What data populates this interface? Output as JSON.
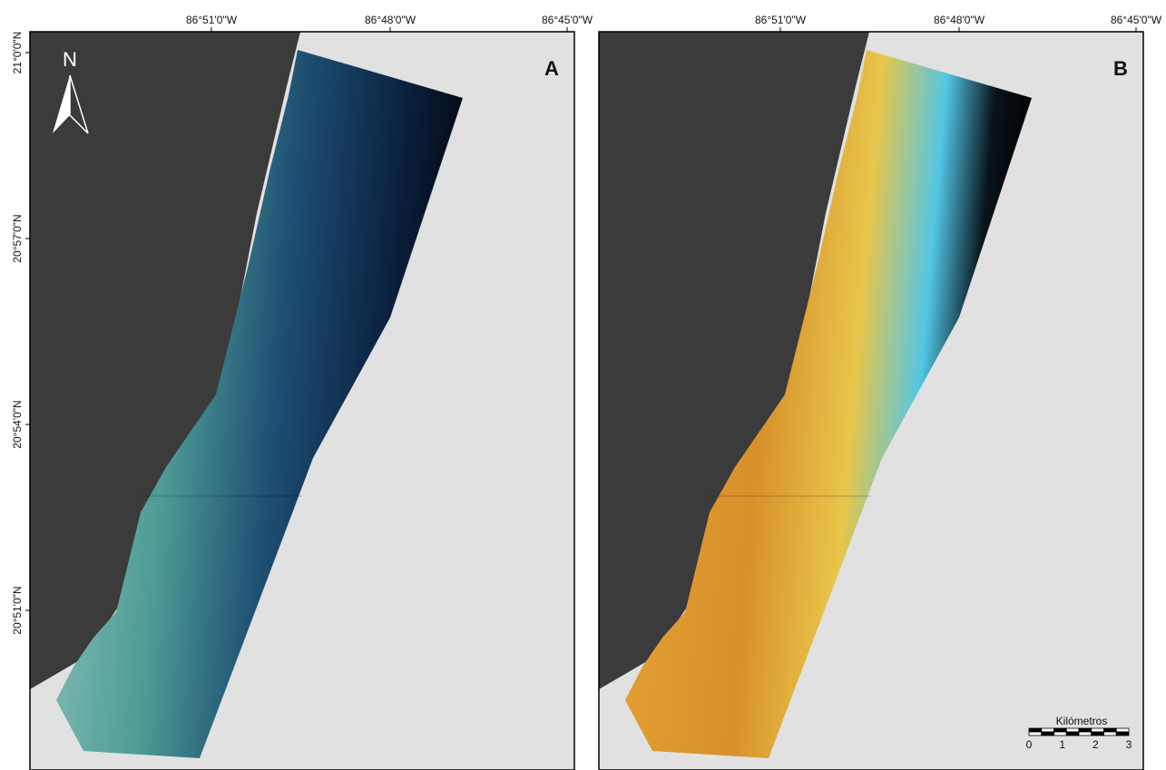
{
  "panels": [
    {
      "letter": "A",
      "lon_labels": [
        "86°51'0\"W",
        "86°48'0\"W",
        "86°45'0\"W"
      ],
      "lat_labels": [
        "21°0'0\"N",
        "20°57'0\"N",
        "20°54'0\"N",
        "20°51'0\"N"
      ]
    },
    {
      "letter": "B",
      "lon_labels": [
        "86°51'0\"W",
        "86°48'0\"W",
        "86°45'0\"W"
      ]
    }
  ],
  "north_label": "N",
  "scale_bar": {
    "title": "Kilómetros",
    "ticks": [
      0,
      1,
      2,
      3
    ]
  }
}
